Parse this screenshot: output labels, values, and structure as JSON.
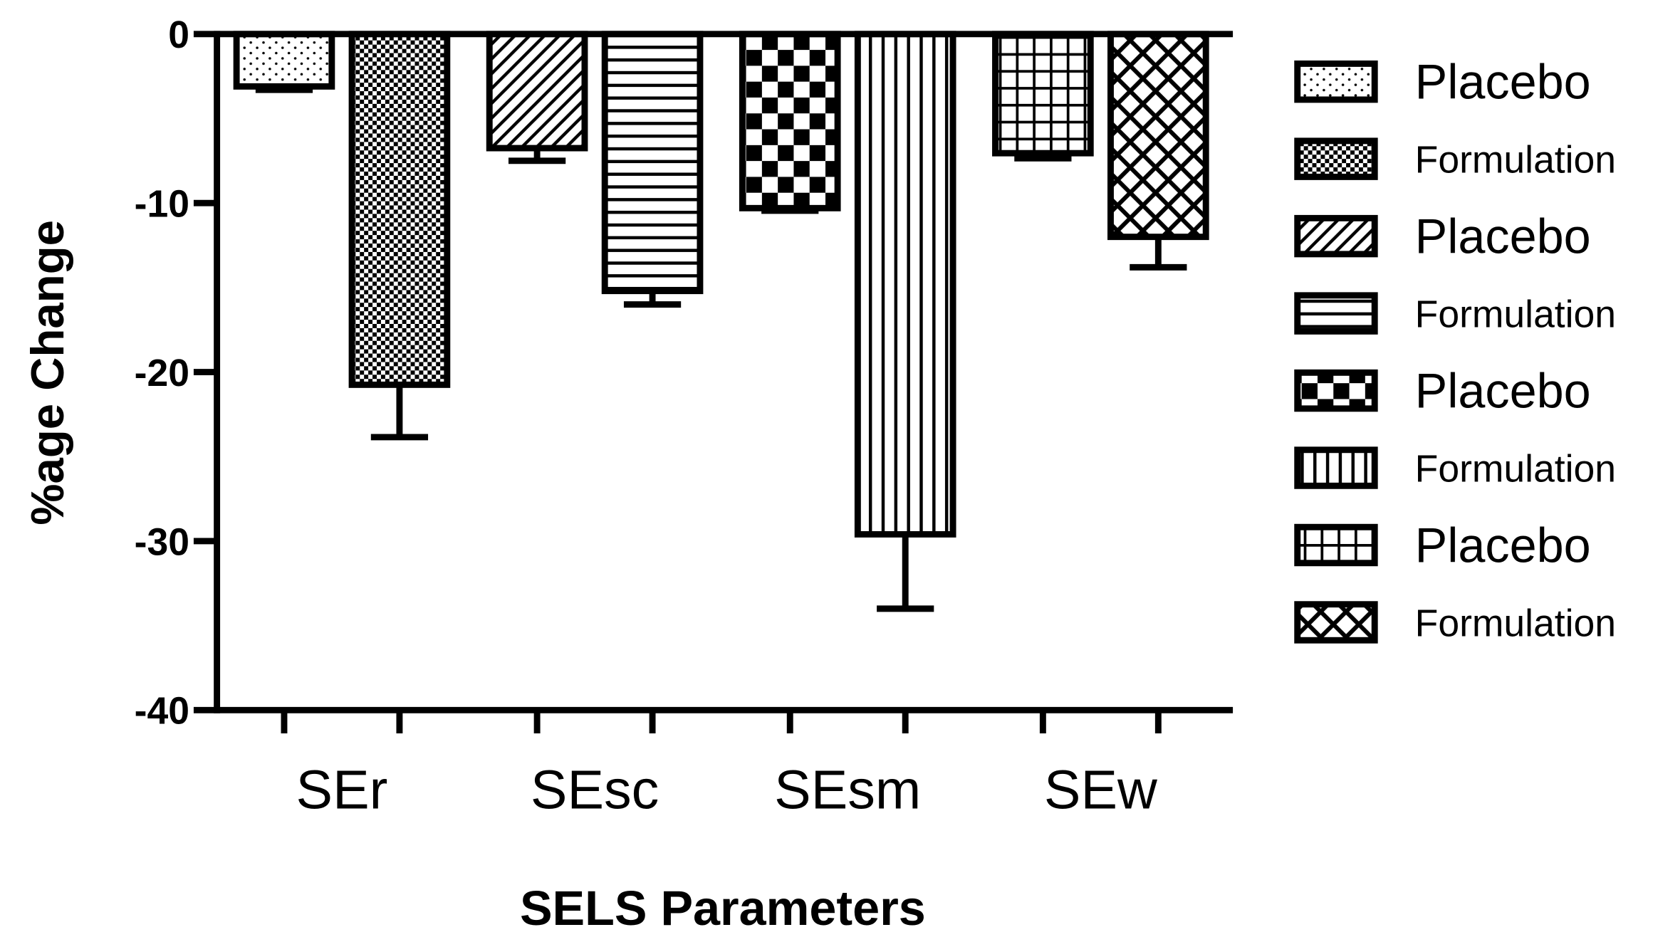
{
  "chart_data": {
    "type": "bar",
    "x_label": "SELS Parameters",
    "y_label": "%age Change",
    "categories": [
      "SEr",
      "SEsc",
      "SEsm",
      "SEw"
    ],
    "ylim": [
      -40,
      0
    ],
    "yticks": [
      -40,
      -30,
      -20,
      -10,
      0
    ],
    "series": [
      {
        "name": "Placebo",
        "pattern": "dots",
        "values": [
          -3.1,
          null,
          null,
          null
        ],
        "errors": [
          0.2,
          null,
          null,
          null
        ]
      },
      {
        "name": "Formulation",
        "pattern": "fine-checker",
        "values": [
          -20.75,
          null,
          null,
          null
        ],
        "errors": [
          3.1,
          null,
          null,
          null
        ]
      },
      {
        "name": "Placebo",
        "pattern": "diagonal",
        "values": [
          null,
          -6.75,
          null,
          null
        ],
        "errors": [
          null,
          0.75,
          null,
          null
        ]
      },
      {
        "name": "Formulation",
        "pattern": "horizontal",
        "values": [
          null,
          -15.2,
          null,
          null
        ],
        "errors": [
          null,
          0.8,
          null,
          null
        ]
      },
      {
        "name": "Placebo",
        "pattern": "checker",
        "values": [
          null,
          null,
          -10.3,
          null
        ],
        "errors": [
          null,
          null,
          0.15,
          null
        ]
      },
      {
        "name": "Formulation",
        "pattern": "vertical",
        "values": [
          null,
          null,
          -29.6,
          null
        ],
        "errors": [
          null,
          null,
          4.4,
          null
        ]
      },
      {
        "name": "Placebo",
        "pattern": "grid",
        "values": [
          null,
          null,
          null,
          -7.05
        ],
        "errors": [
          null,
          null,
          null,
          0.3
        ]
      },
      {
        "name": "Formulation",
        "pattern": "crosshatch",
        "values": [
          null,
          null,
          null,
          -12.0
        ],
        "errors": [
          null,
          null,
          null,
          1.8
        ]
      }
    ]
  }
}
